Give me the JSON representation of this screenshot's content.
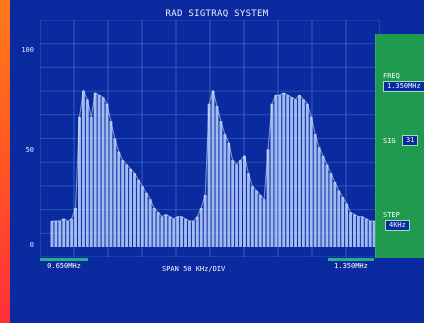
{
  "app": {
    "title": "RAD SIGTRAQ SYSTEM"
  },
  "y_axis": {
    "labels": [
      "100",
      "50",
      "0"
    ]
  },
  "side_panel": {
    "freq_label": "FREQ",
    "freq_value": "1.350MHz",
    "sig_label": "SIG",
    "sig_value": "31",
    "step_label": "STEP",
    "step_value": "4KHz"
  },
  "x_axis": {
    "start": "0.650MHz",
    "span_text": "SPAN  50 KHz/DIV",
    "end": "1.350MHz"
  },
  "colors": {
    "screen_bg": "#0b2a9f",
    "grid": "#4fa3e3",
    "trace": "#bcd2ff",
    "panel": "#1f9a4f",
    "accent": "#24b08f"
  },
  "chart_data": {
    "type": "bar",
    "ylim": [
      0,
      100
    ],
    "grid": true,
    "values": [
      12,
      12,
      12,
      13,
      12,
      13,
      18,
      60,
      72,
      68,
      60,
      71,
      70,
      69,
      66,
      58,
      50,
      44,
      40,
      38,
      36,
      34,
      31,
      28,
      25,
      22,
      18,
      16,
      14,
      15,
      14,
      13,
      14,
      14,
      13,
      12,
      12,
      14,
      18,
      24,
      66,
      72,
      65,
      58,
      52,
      48,
      40,
      38,
      40,
      42,
      34,
      28,
      26,
      24,
      22,
      45,
      66,
      70,
      70,
      71,
      70,
      69,
      68,
      70,
      68,
      66,
      60,
      52,
      46,
      42,
      38,
      34,
      30,
      26,
      23,
      20,
      16,
      15,
      14,
      14,
      13,
      12,
      12,
      12
    ]
  }
}
